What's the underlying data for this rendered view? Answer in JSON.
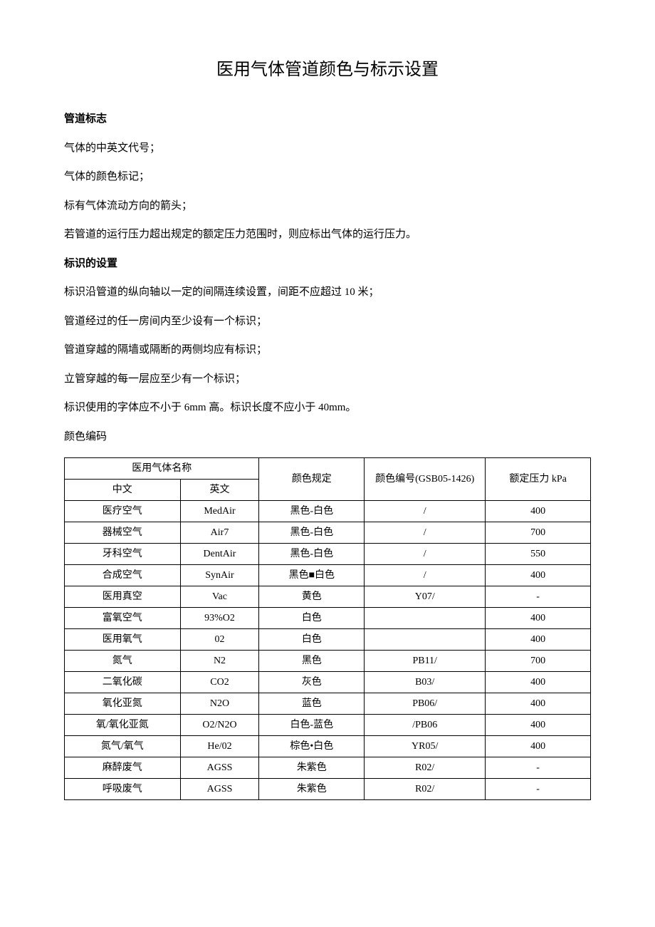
{
  "title": "医用气体管道颜色与标示设置",
  "sections": {
    "h1": "管道标志",
    "p1": "气体的中英文代号；",
    "p2": "气体的颜色标记；",
    "p3": "标有气体流动方向的箭头；",
    "p4": "若管道的运行压力超出规定的额定压力范围时，则应标出气体的运行压力。",
    "h2": "标识的设置",
    "p5": "标识沿管道的纵向轴以一定的间隔连续设置，间距不应超过 10 米；",
    "p6": "管道经过的任一房间内至少设有一个标识；",
    "p7": "管道穿越的隔墙或隔断的两侧均应有标识；",
    "p8": "立管穿越的每一层应至少有一个标识；",
    "p9": "标识使用的字体应不小于 6mm 高。标识长度不应小于 40mm。",
    "p10": "颜色编码"
  },
  "table": {
    "header": {
      "gas_name": "医用气体名称",
      "cn": "中文",
      "en": "英文",
      "color_rule": "颜色规定",
      "color_code": "颜色编号(GSB05-1426)",
      "pressure": "额定压力 kPa"
    },
    "rows": [
      {
        "cn": "医疗空气",
        "en": "MedAir",
        "color": "黑色-白色",
        "code": "/",
        "press": "400"
      },
      {
        "cn": "器械空气",
        "en": "Air7",
        "color": "黑色-白色",
        "code": "/",
        "press": "700"
      },
      {
        "cn": "牙科空气",
        "en": "DentAir",
        "color": "黑色-白色",
        "code": "/",
        "press": "550"
      },
      {
        "cn": "合成空气",
        "en": "SynAir",
        "color": "黑色■白色",
        "code": "/",
        "press": "400"
      },
      {
        "cn": "医用真空",
        "en": "Vac",
        "color": "黄色",
        "code": "Y07/",
        "press": "-"
      },
      {
        "cn": "富氧空气",
        "en": "93%O2",
        "color": "白色",
        "code": "",
        "press": "400"
      },
      {
        "cn": "医用氧气",
        "en": "02",
        "color": "白色",
        "code": "",
        "press": "400"
      },
      {
        "cn": "氮气",
        "en": "N2",
        "color": "黑色",
        "code": "PB11/",
        "press": "700"
      },
      {
        "cn": "二氧化碳",
        "en": "CO2",
        "color": "灰色",
        "code": "B03/",
        "press": "400"
      },
      {
        "cn": "氧化亚氮",
        "en": "N2O",
        "color": "蓝色",
        "code": "PB06/",
        "press": "400"
      },
      {
        "cn": "氧/氧化亚氮",
        "en": "O2/N2O",
        "color": "白色-蓝色",
        "code": "/PB06",
        "press": "400"
      },
      {
        "cn": "氮气/氧气",
        "en": "He/02",
        "color": "棕色•白色",
        "code": "YR05/",
        "press": "400"
      },
      {
        "cn": "麻醉废气",
        "en": "AGSS",
        "color": "朱紫色",
        "code": "R02/",
        "press": "-"
      },
      {
        "cn": "呼吸废气",
        "en": "AGSS",
        "color": "朱紫色",
        "code": "R02/",
        "press": "-"
      }
    ]
  }
}
